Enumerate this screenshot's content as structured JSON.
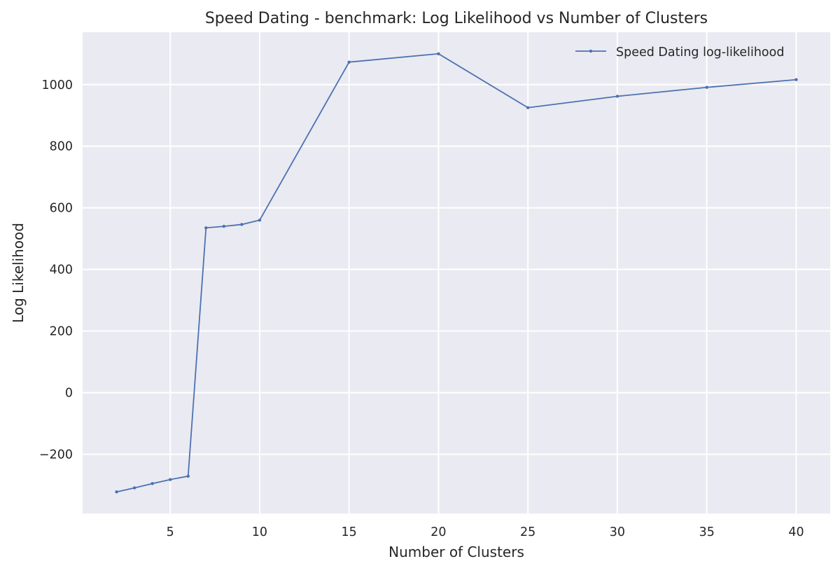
{
  "chart_data": {
    "type": "line",
    "title": "Speed Dating - benchmark: Log Likelihood vs Number of Clusters",
    "xlabel": "Number of Clusters",
    "ylabel": "Log Likelihood",
    "xlim": [
      0.1,
      41.9
    ],
    "ylim": [
      -392,
      1170
    ],
    "xticks": [
      5,
      10,
      15,
      20,
      25,
      30,
      35,
      40
    ],
    "yticks": [
      -200,
      0,
      200,
      400,
      600,
      800,
      1000
    ],
    "ytick_labels": [
      "−200",
      "0",
      "200",
      "400",
      "600",
      "800",
      "1000"
    ],
    "grid": true,
    "legend_position": "upper right",
    "series": [
      {
        "name": "Speed Dating log-likelihood",
        "color": "#4c72b0",
        "marker": "dot",
        "x": [
          2,
          3,
          4,
          5,
          6,
          7,
          8,
          9,
          10,
          15,
          20,
          25,
          30,
          35,
          40
        ],
        "y": [
          -322,
          -309,
          -295,
          -282,
          -271,
          535,
          540,
          546,
          560,
          1073,
          1100,
          925,
          962,
          991,
          1016
        ]
      }
    ]
  },
  "style": {
    "plot_background": "#eaeaf2",
    "grid_color": "#ffffff",
    "text_color": "#262626"
  }
}
